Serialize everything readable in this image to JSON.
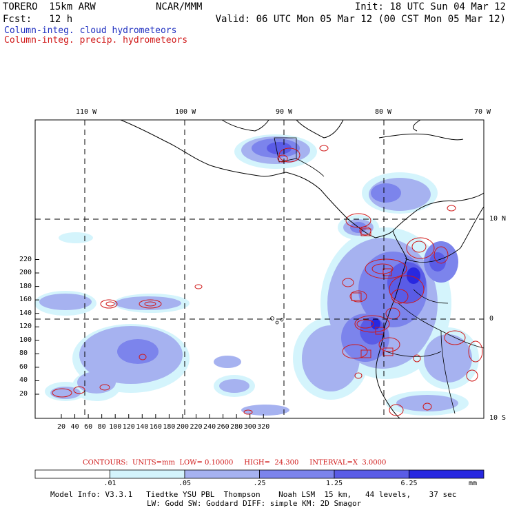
{
  "header": {
    "model": "TORERO  15km ARW",
    "org": "NCAR/MMM",
    "init": "Init: 18 UTC Sun 04 Mar 12",
    "fcst": "Fcst:   12 h",
    "valid": "Valid: 06 UTC Mon 05 Mar 12 (00 CST Mon 05 Mar 12)",
    "cloud_label": "Column-integ. cloud hydrometeors",
    "precip_label": "Column-integ. precip. hydrometeors"
  },
  "map": {
    "lon_labels": [
      "110 W",
      "100 W",
      "90 W",
      "80 W",
      "70 W"
    ],
    "lat_labels": [
      "10 N",
      "0",
      "10 S"
    ],
    "y_ticks": [
      "20",
      "40",
      "60",
      "80",
      "100",
      "120",
      "140",
      "160",
      "180",
      "200",
      "220"
    ],
    "x_ticks": [
      "20",
      "40",
      "60",
      "80",
      "100",
      "120",
      "140",
      "160",
      "180",
      "200",
      "220",
      "240",
      "260",
      "280",
      "300",
      "320"
    ],
    "colors": {
      "cloud_1": "#d4f4fc",
      "cloud_2": "#a6b2f0",
      "cloud_3": "#7c84ec",
      "cloud_4": "#5a5ce6",
      "cloud_5": "#2828e0",
      "precip_contour": "#d01818"
    }
  },
  "contour_info": "CONTOURS:  UNITS=mm  LOW= 0.10000     HIGH=  24.300     INTERVAL=X  3.0000",
  "colorbar": {
    "ticks": [
      ".01",
      ".05",
      ".25",
      "1.25",
      "6.25"
    ],
    "units": "mm",
    "colors": [
      "#ffffff",
      "#d4f4fc",
      "#a6b2f0",
      "#7c84ec",
      "#5a5ce6",
      "#2828e0"
    ]
  },
  "footer": {
    "line1": "Model Info: V3.3.1   Tiedtke YSU PBL  Thompson    Noah LSM  15 km,   44 levels,    37 sec",
    "line2": "LW: Godd SW: Goddard DIFF: simple KM: 2D Smagor"
  }
}
